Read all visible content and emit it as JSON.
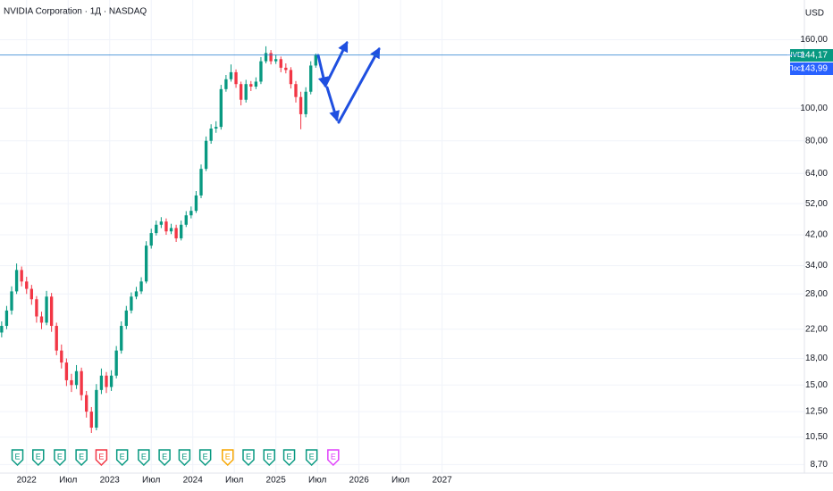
{
  "chart_data": {
    "type": "candlestick",
    "title": "NVIDIA Corporation · 1Д · NASDAQ",
    "currency": "USD",
    "up_color": "#089981",
    "down_color": "#f23645",
    "log_scale": true,
    "grid": true,
    "x": [
      2021.7,
      2021.76,
      2021.82,
      2021.88,
      2021.94,
      2022.0,
      2022.06,
      2022.12,
      2022.18,
      2022.24,
      2022.3,
      2022.36,
      2022.42,
      2022.48,
      2022.54,
      2022.6,
      2022.66,
      2022.72,
      2022.78,
      2022.84,
      2022.9,
      2022.96,
      2023.02,
      2023.08,
      2023.14,
      2023.2,
      2023.26,
      2023.32,
      2023.38,
      2023.44,
      2023.5,
      2023.56,
      2023.62,
      2023.68,
      2023.74,
      2023.8,
      2023.86,
      2023.92,
      2023.98,
      2024.04,
      2024.1,
      2024.16,
      2024.22,
      2024.28,
      2024.34,
      2024.4,
      2024.46,
      2024.52,
      2024.58,
      2024.64,
      2024.7,
      2024.76,
      2024.82,
      2024.88,
      2024.94,
      2025.0,
      2025.06,
      2025.12,
      2025.18,
      2025.24,
      2025.3,
      2025.36,
      2025.42,
      2025.48
    ],
    "open": [
      21.5,
      22.5,
      25,
      28.5,
      33,
      30.5,
      29,
      27,
      24,
      23,
      27.5,
      22.5,
      19,
      17.5,
      15.5,
      15,
      16.5,
      14,
      12.5,
      11.2,
      14.5,
      16,
      14.8,
      16,
      19,
      22.5,
      25,
      27.5,
      28.5,
      30.5,
      39,
      42.5,
      45,
      46,
      43,
      44,
      41,
      45,
      48,
      49.5,
      55,
      66,
      80,
      87,
      88,
      114,
      122,
      128,
      118,
      106,
      118,
      116,
      120,
      138,
      146,
      138,
      140,
      132,
      130,
      118,
      108,
      96,
      112,
      134
    ],
    "high": [
      23.2,
      25.8,
      29.5,
      34.5,
      33.8,
      31.5,
      29.8,
      27.6,
      24.8,
      28.6,
      28.2,
      23.0,
      19.8,
      18.0,
      16.2,
      17.2,
      16.9,
      14.4,
      12.9,
      15.1,
      16.8,
      16.4,
      16.6,
      19.6,
      23.2,
      25.8,
      28.3,
      29.4,
      31.4,
      40.2,
      43.8,
      46.3,
      47.4,
      47.0,
      45.3,
      45.0,
      46.3,
      49.4,
      51.0,
      56.7,
      68.0,
      82.4,
      89.6,
      91.5,
      117.4,
      125.6,
      135.0,
      130.5,
      120.0,
      121.5,
      120.5,
      123.6,
      142.0,
      152.9,
      149.0,
      144.2,
      142.5,
      136.0,
      132.5,
      120.5,
      112.0,
      115.5,
      138.0,
      145.5
    ],
    "low": [
      20.8,
      22.0,
      24.3,
      28.0,
      29.5,
      28.0,
      26.0,
      23.0,
      22.0,
      22.6,
      21.6,
      18.4,
      16.8,
      14.9,
      14.3,
      14.6,
      13.5,
      12.0,
      10.8,
      11.0,
      14.1,
      14.2,
      14.4,
      15.7,
      18.6,
      22.0,
      24.5,
      27.0,
      28.0,
      30.1,
      38.2,
      41.8,
      44.0,
      42.0,
      42.2,
      40.0,
      40.4,
      44.3,
      47.0,
      48.8,
      54.0,
      65.0,
      78.4,
      84.5,
      86.4,
      112.0,
      120.0,
      115.0,
      102.0,
      104.0,
      112.5,
      114.0,
      118.0,
      136.0,
      135.0,
      135.5,
      128.0,
      127.0,
      114.5,
      104.0,
      86.6,
      94.0,
      110.0,
      132.0
    ],
    "close": [
      22.5,
      25,
      28.5,
      33,
      30.5,
      29,
      27,
      24,
      23,
      27.5,
      22.5,
      19,
      17.5,
      15.5,
      15,
      16.5,
      14,
      12.5,
      11.2,
      14.5,
      16,
      14.8,
      16,
      19,
      22.5,
      25,
      27.5,
      28.5,
      30.5,
      39,
      42.5,
      45,
      46,
      43,
      44,
      41,
      45,
      48,
      49.5,
      55,
      66,
      80,
      87,
      88,
      114,
      122,
      128,
      118,
      106,
      118,
      116,
      120,
      138,
      146,
      138,
      140,
      132,
      130,
      118,
      108,
      96,
      112,
      134,
      144
    ],
    "xlim": [
      2021.68,
      2031.36
    ],
    "xticks": [
      2022,
      {
        "value": 2022.5,
        "label": "Июл"
      },
      2023,
      {
        "value": 2023.5,
        "label": "Июл"
      },
      2024,
      {
        "value": 2024.5,
        "label": "Июл"
      },
      2025,
      {
        "value": 2025.5,
        "label": "Июл"
      },
      2026,
      {
        "value": 2026.5,
        "label": "Июл"
      },
      2027
    ],
    "ylim": [
      8.2,
      210
    ],
    "yticks": [
      {
        "value": 8.7,
        "label": "8,70"
      },
      {
        "value": 10.5,
        "label": "10,50"
      },
      {
        "value": 12.5,
        "label": "12,50"
      },
      {
        "value": 15,
        "label": "15,00"
      },
      {
        "value": 18,
        "label": "18,00"
      },
      {
        "value": 22,
        "label": "22,00"
      },
      {
        "value": 28,
        "label": "28,00"
      },
      {
        "value": 34,
        "label": "34,00"
      },
      {
        "value": 42,
        "label": "42,00"
      },
      {
        "value": 52,
        "label": "52,00"
      },
      {
        "value": 64,
        "label": "64,00"
      },
      {
        "value": 80,
        "label": "80,00"
      },
      {
        "value": 100,
        "label": "100,00"
      },
      {
        "value": 160,
        "label": "160,00"
      }
    ],
    "price_markers": [
      {
        "name": "NVDA",
        "value": 144.17,
        "value_label": "144,17",
        "color": "#089981"
      },
      {
        "name": "Пост-",
        "value": 143.99,
        "value_label": "143,99",
        "color": "#2962ff"
      }
    ],
    "earnings": {
      "label": "E",
      "x": [
        2021.89,
        2022.14,
        2022.4,
        2022.66,
        2022.9,
        2023.15,
        2023.41,
        2023.66,
        2023.9,
        2024.15,
        2024.42,
        2024.67,
        2024.92,
        2025.16,
        2025.43,
        2025.69
      ],
      "colors": [
        "#089981",
        "#089981",
        "#089981",
        "#089981",
        "#f23645",
        "#089981",
        "#089981",
        "#089981",
        "#089981",
        "#089981",
        "#f7a600",
        "#089981",
        "#089981",
        "#089981",
        "#089981",
        "#e040fb"
      ]
    }
  }
}
